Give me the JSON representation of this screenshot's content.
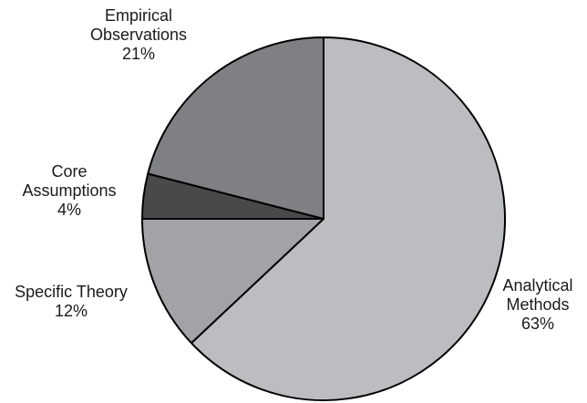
{
  "chart_data": {
    "type": "pie",
    "slices": [
      {
        "label": [
          "Analytical",
          "Methods"
        ],
        "value": 63,
        "display": "63%",
        "color": "#bcbdc0"
      },
      {
        "label": [
          "Specific Theory"
        ],
        "value": 12,
        "display": "12%",
        "color": "#a2a3a7"
      },
      {
        "label": [
          "Core",
          "Assumptions"
        ],
        "value": 4,
        "display": "4%",
        "color": "#48494b"
      },
      {
        "label": [
          "Empirical",
          "Observations"
        ],
        "value": 21,
        "display": "21%",
        "color": "#7f8083"
      }
    ],
    "legend": "none",
    "direction": "clockwise",
    "start": "top"
  }
}
